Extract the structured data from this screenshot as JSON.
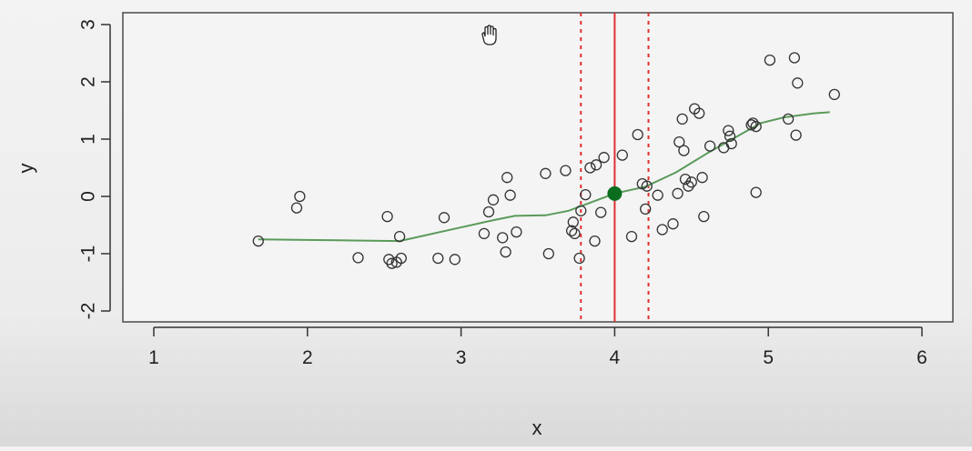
{
  "chart_data": {
    "type": "scatter",
    "title": "",
    "xlabel": "x",
    "ylabel": "y",
    "xlim": [
      1,
      6
    ],
    "ylim": [
      -2,
      3
    ],
    "xticks": [
      "1",
      "2",
      "3",
      "4",
      "5",
      "6"
    ],
    "yticks": [
      "-2",
      "-1",
      "0",
      "1",
      "2",
      "3"
    ],
    "grid": false,
    "colors": {
      "points": "#333333",
      "smooth": "#5a9a5a",
      "vline": "#e03030",
      "highlight": "#0a6e1e",
      "panel": "#f4f4f4"
    },
    "points": [
      [
        1.68,
        -0.78
      ],
      [
        1.93,
        -0.2
      ],
      [
        1.95,
        0.0
      ],
      [
        2.33,
        -1.07
      ],
      [
        2.52,
        -0.35
      ],
      [
        2.53,
        -1.1
      ],
      [
        2.55,
        -1.17
      ],
      [
        2.58,
        -1.15
      ],
      [
        2.6,
        -0.7
      ],
      [
        2.61,
        -1.08
      ],
      [
        2.85,
        -1.08
      ],
      [
        2.89,
        -0.37
      ],
      [
        2.96,
        -1.1
      ],
      [
        3.15,
        -0.65
      ],
      [
        3.18,
        -0.27
      ],
      [
        3.21,
        -0.06
      ],
      [
        3.27,
        -0.72
      ],
      [
        3.29,
        -0.97
      ],
      [
        3.3,
        0.33
      ],
      [
        3.32,
        0.02
      ],
      [
        3.36,
        -0.62
      ],
      [
        3.55,
        0.4
      ],
      [
        3.57,
        -1.0
      ],
      [
        3.68,
        0.45
      ],
      [
        3.72,
        -0.6
      ],
      [
        3.73,
        -0.45
      ],
      [
        3.74,
        -0.65
      ],
      [
        3.77,
        -1.08
      ],
      [
        3.78,
        -0.25
      ],
      [
        3.81,
        0.03
      ],
      [
        3.84,
        0.5
      ],
      [
        3.87,
        -0.78
      ],
      [
        3.88,
        0.55
      ],
      [
        3.91,
        -0.28
      ],
      [
        3.93,
        0.68
      ],
      [
        4.05,
        0.72
      ],
      [
        4.11,
        -0.7
      ],
      [
        4.15,
        1.08
      ],
      [
        4.18,
        0.22
      ],
      [
        4.2,
        -0.22
      ],
      [
        4.21,
        0.18
      ],
      [
        4.28,
        0.02
      ],
      [
        4.31,
        -0.58
      ],
      [
        4.38,
        -0.48
      ],
      [
        4.41,
        0.05
      ],
      [
        4.42,
        0.95
      ],
      [
        4.44,
        1.35
      ],
      [
        4.45,
        0.8
      ],
      [
        4.46,
        0.3
      ],
      [
        4.48,
        0.18
      ],
      [
        4.5,
        0.25
      ],
      [
        4.52,
        1.53
      ],
      [
        4.55,
        1.45
      ],
      [
        4.57,
        0.33
      ],
      [
        4.58,
        -0.35
      ],
      [
        4.62,
        0.88
      ],
      [
        4.71,
        0.85
      ],
      [
        4.74,
        1.15
      ],
      [
        4.75,
        1.05
      ],
      [
        4.76,
        0.92
      ],
      [
        4.89,
        1.25
      ],
      [
        4.9,
        1.28
      ],
      [
        4.92,
        1.22
      ],
      [
        4.92,
        0.07
      ],
      [
        5.01,
        2.38
      ],
      [
        5.13,
        1.35
      ],
      [
        5.17,
        2.42
      ],
      [
        5.18,
        1.07
      ],
      [
        5.19,
        1.98
      ],
      [
        5.43,
        1.78
      ]
    ],
    "smooth_line": {
      "x": [
        1.68,
        2.0,
        2.3,
        2.6,
        2.9,
        3.2,
        3.35,
        3.55,
        3.7,
        3.85,
        4.0,
        4.2,
        4.4,
        4.6,
        4.8,
        4.95,
        5.1,
        5.3,
        5.4
      ],
      "y": [
        -0.75,
        -0.76,
        -0.77,
        -0.78,
        -0.6,
        -0.42,
        -0.34,
        -0.33,
        -0.25,
        -0.1,
        0.05,
        0.17,
        0.42,
        0.75,
        1.05,
        1.28,
        1.38,
        1.45,
        1.47
      ]
    },
    "vertical_lines": {
      "center": 4.0,
      "band": [
        3.78,
        4.22
      ]
    },
    "highlight_point": [
      4.0,
      0.05
    ]
  }
}
